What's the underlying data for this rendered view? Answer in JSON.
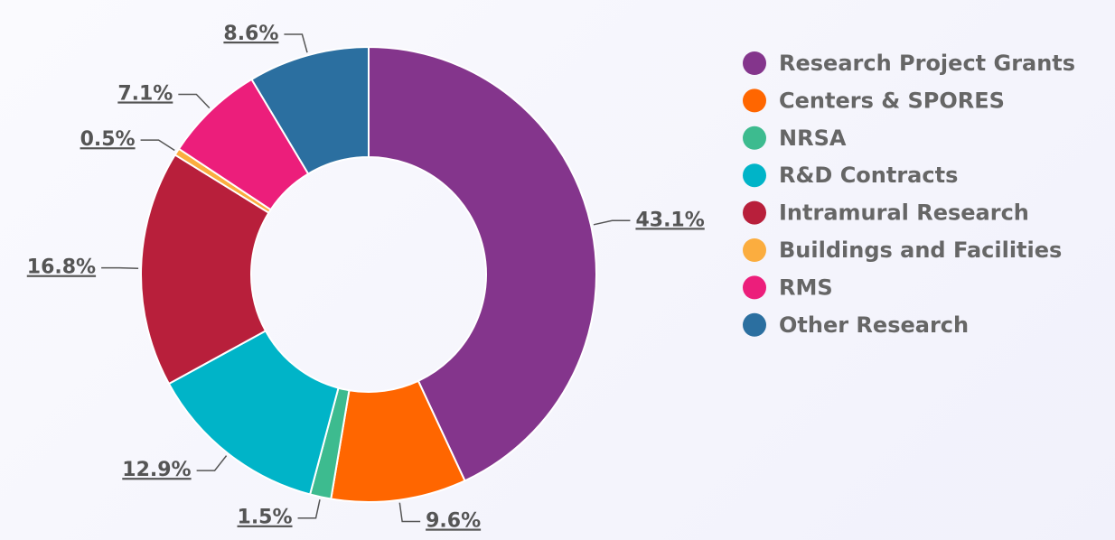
{
  "chart_data": {
    "type": "donut",
    "categories": [
      "Research Project Grants",
      "Centers & SPORES",
      "NRSA",
      "R&D Contracts",
      "Intramural Research",
      "Buildings and Facilities",
      "RMS",
      "Other Research"
    ],
    "values": [
      43.1,
      9.6,
      1.5,
      12.9,
      16.8,
      0.5,
      7.1,
      8.6
    ],
    "value_labels": [
      "43.1%",
      "9.6%",
      "1.5%",
      "12.9%",
      "16.8%",
      "0.5%",
      "7.1%",
      "8.6%"
    ],
    "colors": [
      "#84358c",
      "#ff6600",
      "#3dbb8f",
      "#00b4c8",
      "#b81f3b",
      "#fbad3f",
      "#ec1e7b",
      "#2b6fa0"
    ],
    "legend": "right"
  }
}
